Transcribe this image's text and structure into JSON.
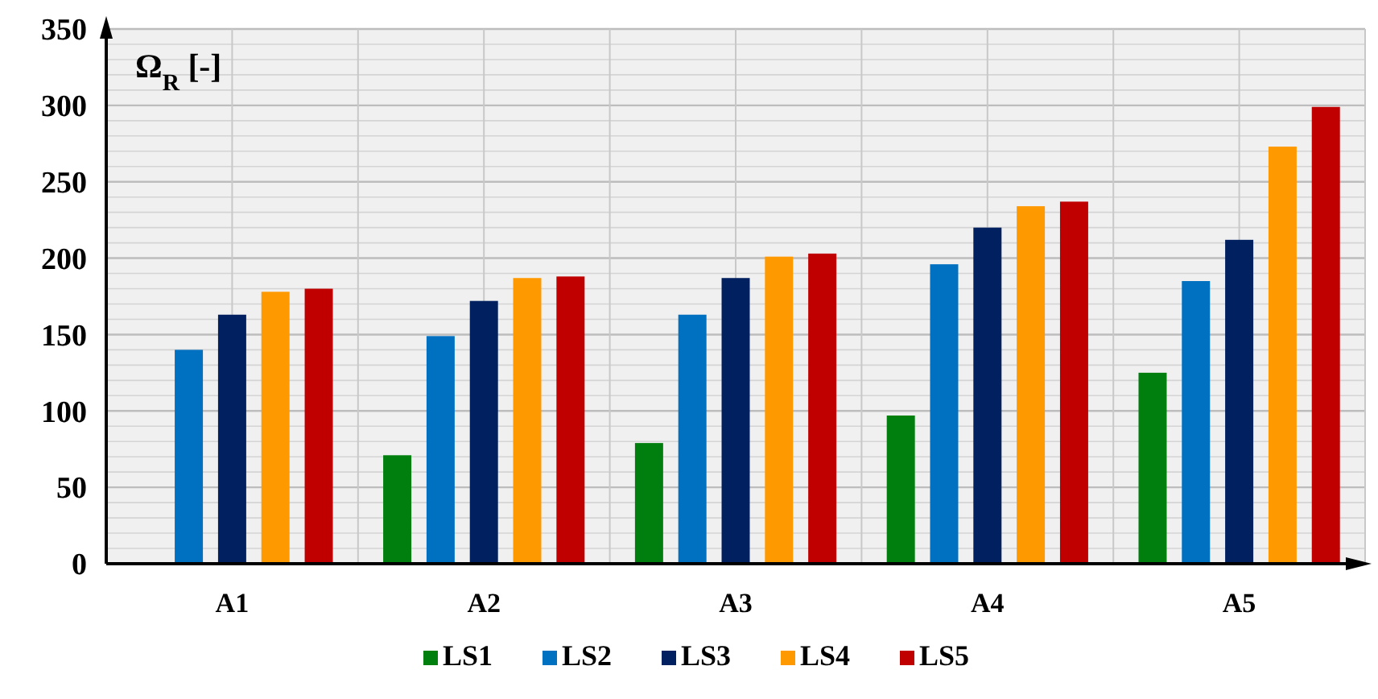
{
  "chart_data": {
    "type": "bar",
    "ylabel": "Ω$_{R}$ [-]",
    "categories": [
      "A1",
      "A2",
      "A3",
      "A4",
      "A5"
    ],
    "series": [
      {
        "name": "LS1",
        "color": "#007f0e",
        "values": [
          null,
          71,
          79,
          97,
          125
        ]
      },
      {
        "name": "LS2",
        "color": "#0070c0",
        "values": [
          140,
          149,
          163,
          196,
          185
        ]
      },
      {
        "name": "LS3",
        "color": "#002060",
        "values": [
          163,
          172,
          187,
          220,
          212
        ]
      },
      {
        "name": "LS4",
        "color": "#ff9900",
        "values": [
          178,
          187,
          201,
          234,
          273
        ]
      },
      {
        "name": "LS5",
        "color": "#c00000",
        "values": [
          180,
          188,
          203,
          237,
          299
        ]
      }
    ],
    "ylim": [
      0,
      350
    ],
    "yticks": [
      0,
      {
        "value": 10,
        "label": null
      },
      {
        "value": 20,
        "label": null
      },
      {
        "value": 30,
        "label": null
      },
      {
        "value": 40,
        "label": null
      },
      50,
      {
        "value": 60,
        "label": null
      },
      {
        "value": 70,
        "label": null
      },
      {
        "value": 80,
        "label": null
      },
      {
        "value": 90,
        "label": null
      },
      100,
      {
        "value": 110,
        "label": null
      },
      {
        "value": 120,
        "label": null
      },
      {
        "value": 130,
        "label": null
      },
      {
        "value": 140,
        "label": null
      },
      150,
      {
        "value": 160,
        "label": null
      },
      {
        "value": 170,
        "label": null
      },
      {
        "value": 180,
        "label": null
      },
      {
        "value": 190,
        "label": null
      },
      200,
      {
        "value": 210,
        "label": null
      },
      {
        "value": 220,
        "label": null
      },
      {
        "value": 230,
        "label": null
      },
      {
        "value": 240,
        "label": null
      },
      250,
      {
        "value": 260,
        "label": null
      },
      {
        "value": 270,
        "label": null
      },
      {
        "value": 280,
        "label": null
      },
      {
        "value": 290,
        "label": null
      },
      300,
      {
        "value": 310,
        "label": null
      },
      {
        "value": 320,
        "label": null
      },
      {
        "value": 330,
        "label": null
      },
      {
        "value": 340,
        "label": null
      },
      350
    ],
    "grid": true,
    "legend": "bottom"
  }
}
